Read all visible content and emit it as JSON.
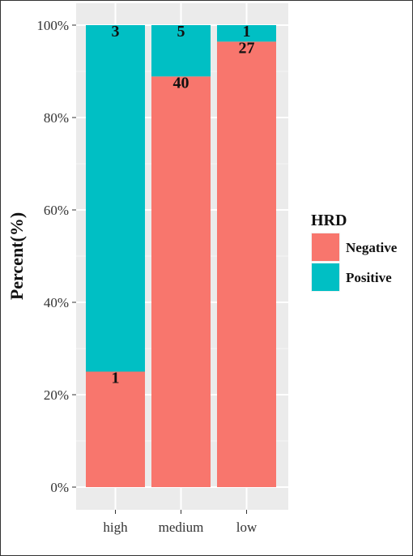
{
  "chart_data": {
    "type": "bar",
    "stacked": true,
    "percent": true,
    "categories": [
      "high",
      "medium",
      "low"
    ],
    "series": [
      {
        "name": "Negative",
        "counts": [
          1,
          40,
          27
        ],
        "color": "#F8766D"
      },
      {
        "name": "Positive",
        "counts": [
          3,
          5,
          1
        ],
        "color": "#00BFC4"
      }
    ],
    "percent_values": {
      "Negative": [
        25.0,
        88.9,
        96.4
      ],
      "Positive": [
        75.0,
        11.1,
        3.6
      ]
    },
    "title": "",
    "xlabel": "",
    "ylabel": "Percent(%)",
    "ylim": [
      0,
      100
    ],
    "yticks": [
      "0%",
      "20%",
      "40%",
      "60%",
      "80%",
      "100%"
    ],
    "grid": true,
    "legend": {
      "title": "HRD",
      "position": "right",
      "entries": [
        "Negative",
        "Positive"
      ]
    },
    "panel_background": "#EBEBEB"
  }
}
